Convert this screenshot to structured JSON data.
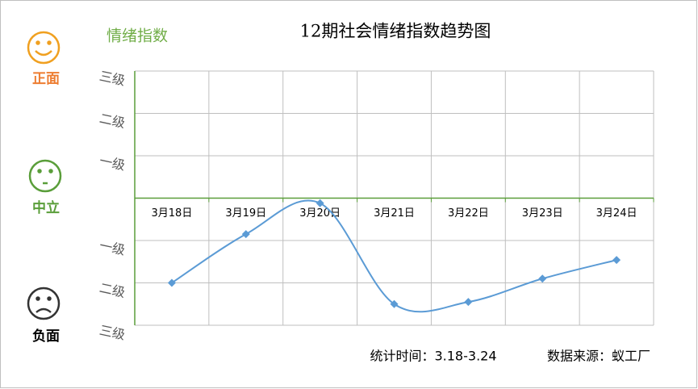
{
  "chart_data": {
    "type": "line",
    "title": "12期社会情绪指数趋势图",
    "y_label": "情绪指数",
    "mood_labels": [
      "正面",
      "中立",
      "负面"
    ],
    "footnotes": [
      "统计时间：3.18-3.24",
      "数据来源：蚁工厂"
    ],
    "categories": [
      "3月18日",
      "3月19日",
      "3月20日",
      "3月21日",
      "3月22日",
      "3月23日",
      "3月24日"
    ],
    "series": [
      {
        "name": "情绪指数",
        "color": "#5b9bd5",
        "values": [
          -2.0,
          -0.85,
          -0.12,
          -2.5,
          -2.45,
          -1.9,
          -1.46
        ]
      }
    ],
    "ylim": [
      -3,
      3
    ],
    "yticks": [
      {
        "value": 3,
        "label": "三级"
      },
      {
        "value": 2,
        "label": "二级"
      },
      {
        "value": 1,
        "label": "一级"
      },
      {
        "value": -1,
        "label": "一级"
      },
      {
        "value": -2,
        "label": "二级"
      },
      {
        "value": -3,
        "label": "三级"
      }
    ],
    "grid": true,
    "smooth": true
  }
}
